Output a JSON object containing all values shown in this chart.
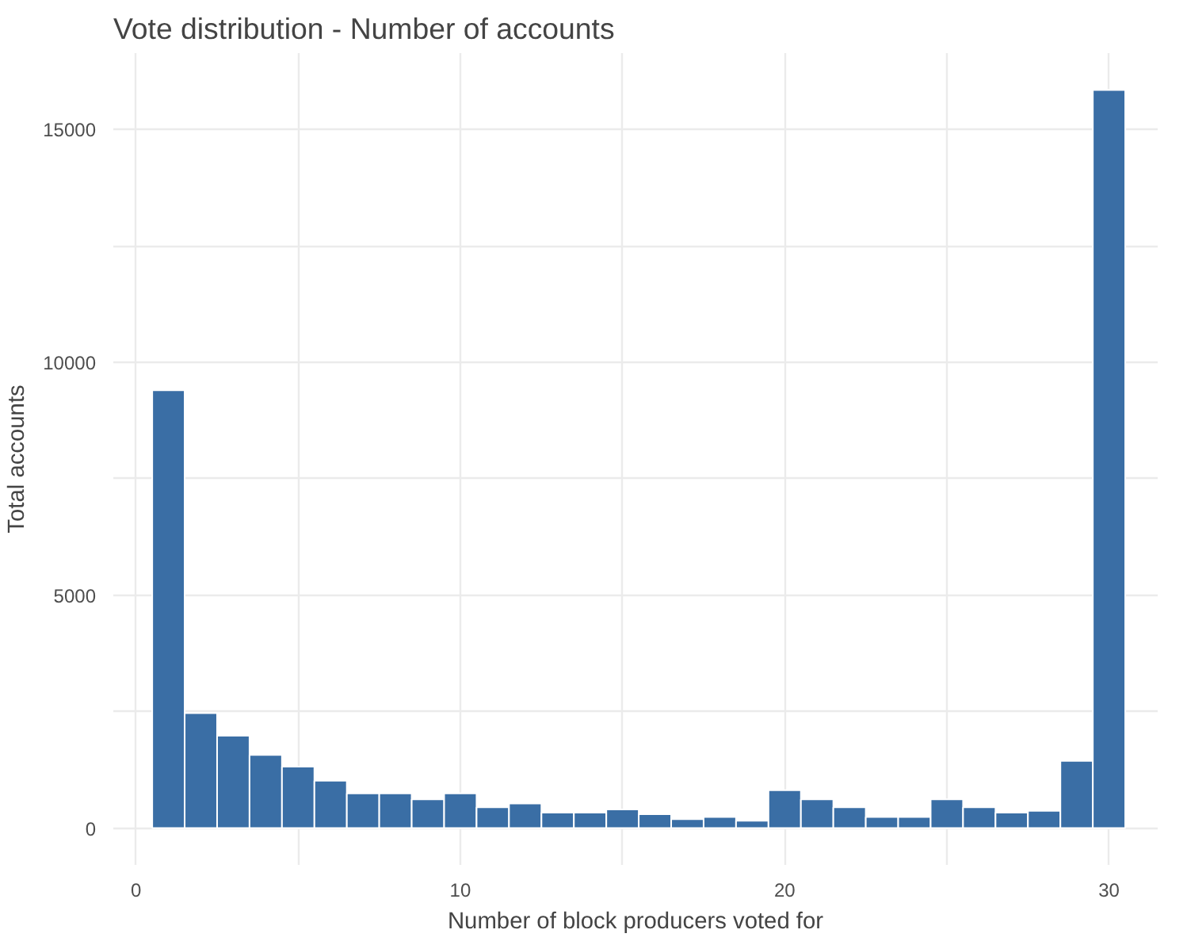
{
  "chart_data": {
    "type": "histogram",
    "title": "Vote distribution - Number of accounts",
    "xlabel": "Number of block producers voted for",
    "ylabel": "Total accounts",
    "bins": [
      0.5,
      1.5,
      2.5,
      3.5,
      4.5,
      5.5,
      6.5,
      7.5,
      8.5,
      9.5,
      10.5,
      11.5,
      12.5,
      13.5,
      14.5,
      15.5,
      16.5,
      17.5,
      18.5,
      19.5,
      20.5,
      21.5,
      22.5,
      23.5,
      24.5,
      25.5,
      26.5,
      27.5,
      28.5,
      29.5,
      30.5
    ],
    "values": [
      9400,
      2470,
      1985,
      1570,
      1320,
      1020,
      745,
      745,
      620,
      745,
      450,
      530,
      335,
      335,
      400,
      300,
      195,
      240,
      160,
      815,
      620,
      450,
      240,
      240,
      620,
      450,
      335,
      370,
      1445,
      15850
    ],
    "color": "#3a6ea5",
    "xlim": [
      -0.7,
      31.5
    ],
    "ylim": [
      -790,
      16640
    ],
    "xticks": [
      0,
      {
        "value": 5,
        "label": null
      },
      10,
      {
        "value": 15,
        "label": null
      },
      20,
      {
        "value": 25,
        "label": null
      },
      30
    ],
    "yticks": [
      0,
      {
        "value": 2500,
        "label": null
      },
      5000,
      {
        "value": 7500,
        "label": null
      },
      10000,
      {
        "value": 12500,
        "label": null
      },
      15000
    ],
    "grid": true
  }
}
